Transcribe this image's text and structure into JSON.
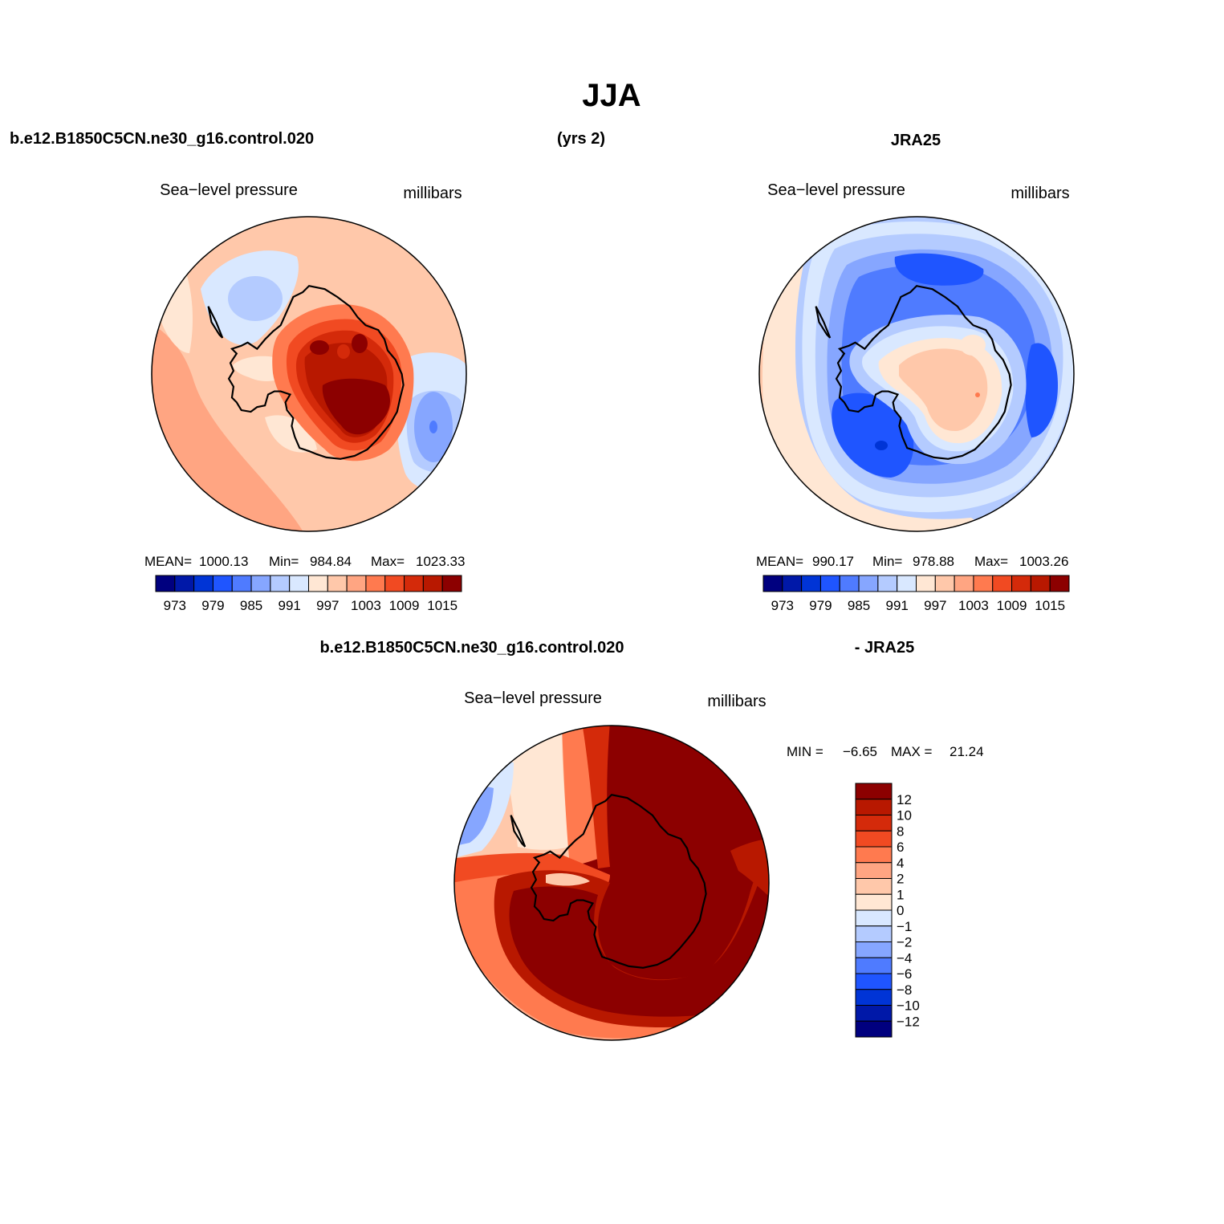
{
  "title": "JJA",
  "header": {
    "case_name": "b.e12.B1850C5CN.ne30_g16.control.020",
    "years": "(yrs 2)",
    "obs_name": "JRA25"
  },
  "diff_header": {
    "case_name": "b.e12.B1850C5CN.ne30_g16.control.020",
    "obs_label": "- JRA25"
  },
  "panels": {
    "model": {
      "variable": "Sea−level pressure",
      "units": "millibars",
      "stats": {
        "mean_label": "MEAN=",
        "mean": "1000.13",
        "min_label": "Min=",
        "min": "984.84",
        "max_label": "Max=",
        "max": "1023.33"
      }
    },
    "obs": {
      "variable": "Sea−level pressure",
      "units": "millibars",
      "stats": {
        "mean_label": "MEAN=",
        "mean": "990.17",
        "min_label": "Min=",
        "min": "978.88",
        "max_label": "Max=",
        "max": "1003.26"
      }
    },
    "diff": {
      "variable": "Sea−level pressure",
      "units": "millibars",
      "stats": {
        "min_label": "MIN =",
        "min": "−6.65",
        "max_label": "MAX =",
        "max": "21.24"
      }
    }
  },
  "colorbar_horizontal": {
    "colors": [
      "#00007f",
      "#0018a8",
      "#0034d6",
      "#1f55ff",
      "#4f7bff",
      "#86a6ff",
      "#b4cbff",
      "#d9e8ff",
      "#ffe7d4",
      "#ffc8aa",
      "#ffa582",
      "#ff7a4f",
      "#f14a22",
      "#d42a0a",
      "#b81800",
      "#8c0000"
    ],
    "labels": [
      "973",
      "979",
      "985",
      "991",
      "997",
      "1003",
      "1009",
      "1015"
    ]
  },
  "colorbar_vertical": {
    "colors": [
      "#8c0000",
      "#b81800",
      "#d42a0a",
      "#f14a22",
      "#ff7a4f",
      "#ffa582",
      "#ffc8aa",
      "#ffe7d4",
      "#d9e8ff",
      "#b4cbff",
      "#86a6ff",
      "#4f7bff",
      "#1f55ff",
      "#0034d6",
      "#0018a8",
      "#00007f"
    ],
    "labels": [
      "12",
      "10",
      "8",
      "6",
      "4",
      "2",
      "1",
      "0",
      "−1",
      "−2",
      "−4",
      "−6",
      "−8",
      "−10",
      "−12"
    ]
  },
  "chart_data": [
    {
      "type": "heatmap",
      "projection": "south polar stereographic",
      "title": "Sea−level pressure",
      "units": "millibars",
      "dataset": "b.e12.B1850C5CN.ne30_g16.control.020",
      "mean": 1000.13,
      "min": 984.84,
      "max": 1023.33,
      "contour_levels": [
        973,
        976,
        979,
        982,
        985,
        988,
        991,
        994,
        997,
        1000,
        1003,
        1006,
        1009,
        1012,
        1015
      ]
    },
    {
      "type": "heatmap",
      "projection": "south polar stereographic",
      "title": "Sea−level pressure",
      "units": "millibars",
      "dataset": "JRA25",
      "mean": 990.17,
      "min": 978.88,
      "max": 1003.26,
      "contour_levels": [
        973,
        976,
        979,
        982,
        985,
        988,
        991,
        994,
        997,
        1000,
        1003,
        1006,
        1009,
        1012,
        1015
      ]
    },
    {
      "type": "heatmap",
      "projection": "south polar stereographic",
      "title": "Sea−level pressure",
      "units": "millibars",
      "dataset": "b.e12.B1850C5CN.ne30_g16.control.020 - JRA25",
      "min": -6.65,
      "max": 21.24,
      "contour_levels": [
        -12,
        -10,
        -8,
        -6,
        -4,
        -2,
        -1,
        0,
        1,
        2,
        4,
        6,
        8,
        10,
        12
      ]
    }
  ]
}
